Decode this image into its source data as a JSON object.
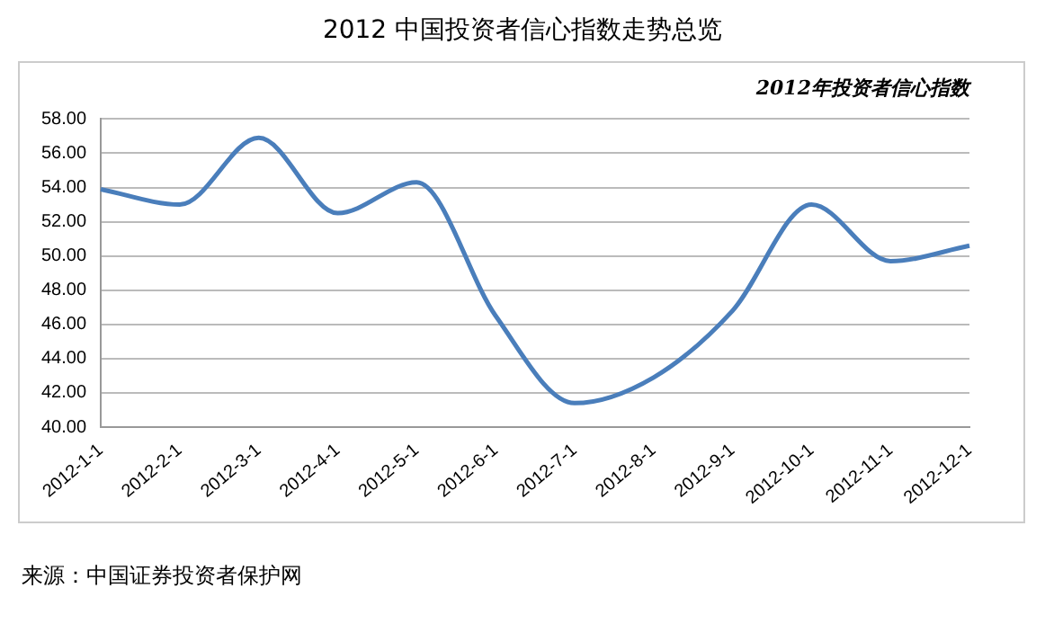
{
  "chart_data": {
    "type": "line",
    "title": "2012 中国投资者信心指数走势总览",
    "subtitle": "2012年投资者信心指数",
    "categories": [
      "2012-1-1",
      "2012-2-1",
      "2012-3-1",
      "2012-4-1",
      "2012-5-1",
      "2012-6-1",
      "2012-7-1",
      "2012-8-1",
      "2012-9-1",
      "2012-10-1",
      "2012-11-1",
      "2012-12-1"
    ],
    "series": [
      {
        "color": "#4a7ebb",
        "values": [
          53.9,
          53.0,
          56.9,
          52.5,
          54.3,
          46.5,
          41.4,
          42.9,
          46.8,
          53.0,
          49.7,
          50.6
        ]
      }
    ],
    "ylim": [
      40,
      58
    ],
    "yticks": [
      {
        "value": 40,
        "label": "40.00"
      },
      {
        "value": 42,
        "label": "42.00"
      },
      {
        "value": 44,
        "label": "44.00"
      },
      {
        "value": 46,
        "label": "46.00"
      },
      {
        "value": 48,
        "label": "48.00"
      },
      {
        "value": 50,
        "label": "50.00"
      },
      {
        "value": 52,
        "label": "52.00"
      },
      {
        "value": 54,
        "label": "54.00"
      },
      {
        "value": 56,
        "label": "56.00"
      },
      {
        "value": 58,
        "label": "58.00"
      }
    ],
    "grid": "y",
    "legend": false,
    "marker": "none",
    "line_style": "solid",
    "annotations": [
      "来源：中国证券投资者保护网"
    ]
  }
}
